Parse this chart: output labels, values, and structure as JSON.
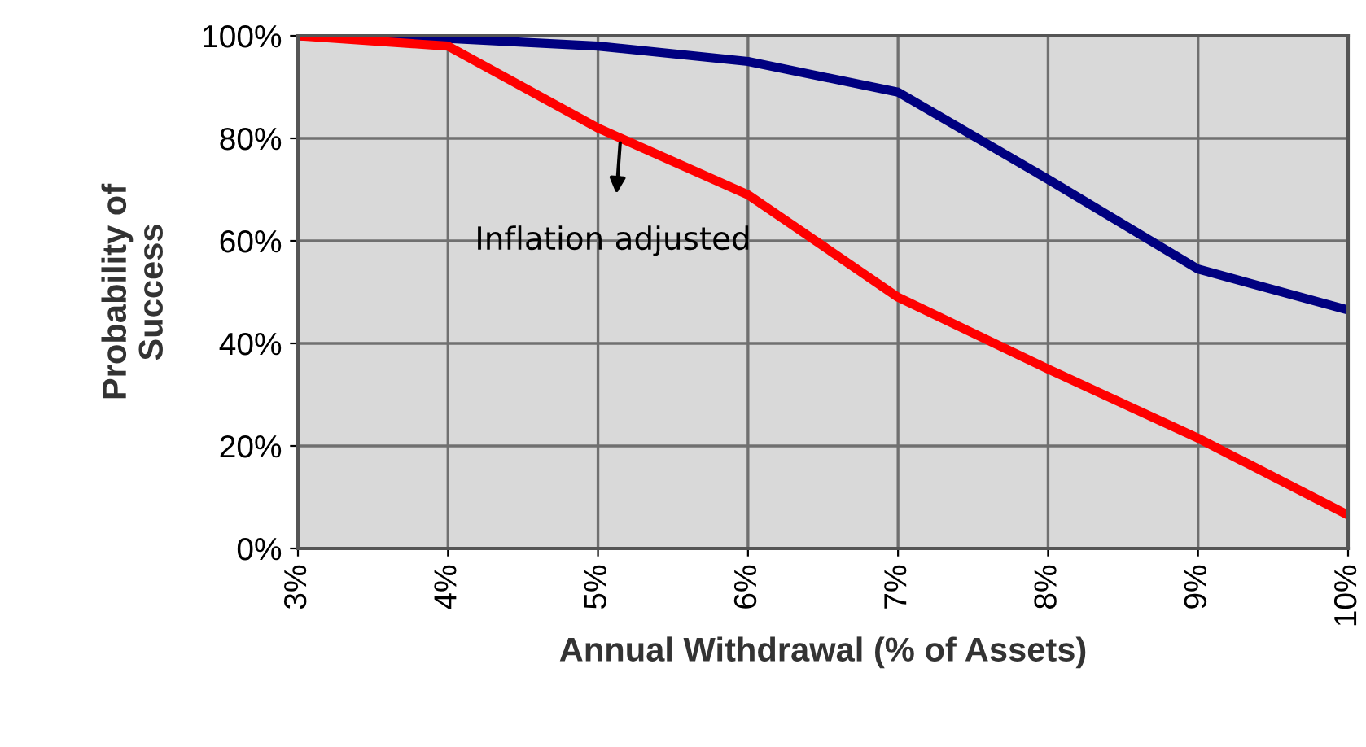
{
  "chart_data": {
    "type": "line",
    "xlabel": "Annual Withdrawal (% of Assets)",
    "ylabel": "Probability of\nSuccess",
    "x": [
      3,
      4,
      5,
      6,
      7,
      8,
      9,
      10
    ],
    "series": [
      {
        "color": "#000080",
        "values": [
          100,
          99.5,
          98,
          95,
          89,
          72,
          54.5,
          46.5
        ]
      },
      {
        "color": "#ff0000",
        "values": [
          100,
          98,
          82,
          69,
          49,
          35,
          21.5,
          6.5
        ]
      }
    ],
    "xlim": [
      3,
      10
    ],
    "ylim": [
      0,
      100
    ],
    "xticks": [
      {
        "value": 3,
        "label": "3%"
      },
      {
        "value": 4,
        "label": "4%"
      },
      {
        "value": 5,
        "label": "5%"
      },
      {
        "value": 6,
        "label": "6%"
      },
      {
        "value": 7,
        "label": "7%"
      },
      {
        "value": 8,
        "label": "8%"
      },
      {
        "value": 9,
        "label": "9%"
      },
      {
        "value": 10,
        "label": "10%"
      }
    ],
    "yticks": [
      {
        "value": 0,
        "label": "0%"
      },
      {
        "value": 20,
        "label": "20%"
      },
      {
        "value": 40,
        "label": "40%"
      },
      {
        "value": 60,
        "label": "60%"
      },
      {
        "value": 80,
        "label": "80%"
      },
      {
        "value": 100,
        "label": "100%"
      }
    ],
    "grid": true,
    "marker": "none",
    "line_style": "solid",
    "legend": false,
    "annotations": [
      {
        "text": "Inflation adjusted",
        "x": 5.15,
        "y": 80
      }
    ]
  }
}
